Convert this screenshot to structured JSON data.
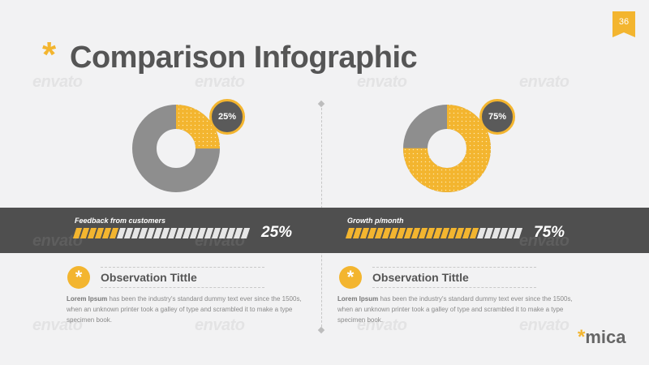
{
  "slide": {
    "number": "36",
    "title_mark": "*",
    "title": "Comparison Infographic",
    "watermark": "envato"
  },
  "colors": {
    "accent": "#f3b52f",
    "dark": "#555555",
    "gray_slice": "#8e8e8e",
    "band": "#4f4f4f",
    "background": "#f2f2f3"
  },
  "left": {
    "donut_percent": "25%",
    "donut_fraction": 0.25,
    "bar_label": "Feedback from customers",
    "bar_value": "25%",
    "bar_fraction": 0.25,
    "obs_icon": "*",
    "obs_title": "Observation Tittle",
    "obs_lead": "Lorem Ipsum",
    "obs_text": " has been the industry's standard dummy text ever since the 1500s, when an unknown printer took a galley of type and scrambled it to make a type specimen book."
  },
  "right": {
    "donut_percent": "75%",
    "donut_fraction": 0.75,
    "bar_label": "Growth p/month",
    "bar_value": "75%",
    "bar_fraction": 0.75,
    "obs_icon": "*",
    "obs_title": "Observation Tittle",
    "obs_lead": "Lorem Ipsum",
    "obs_text": " has been the industry's standard dummy text ever since the 1500s, when an unknown printer took a galley of type and scrambled it to make a type specimen book."
  },
  "logo": {
    "mark": "*",
    "name": "mica"
  }
}
